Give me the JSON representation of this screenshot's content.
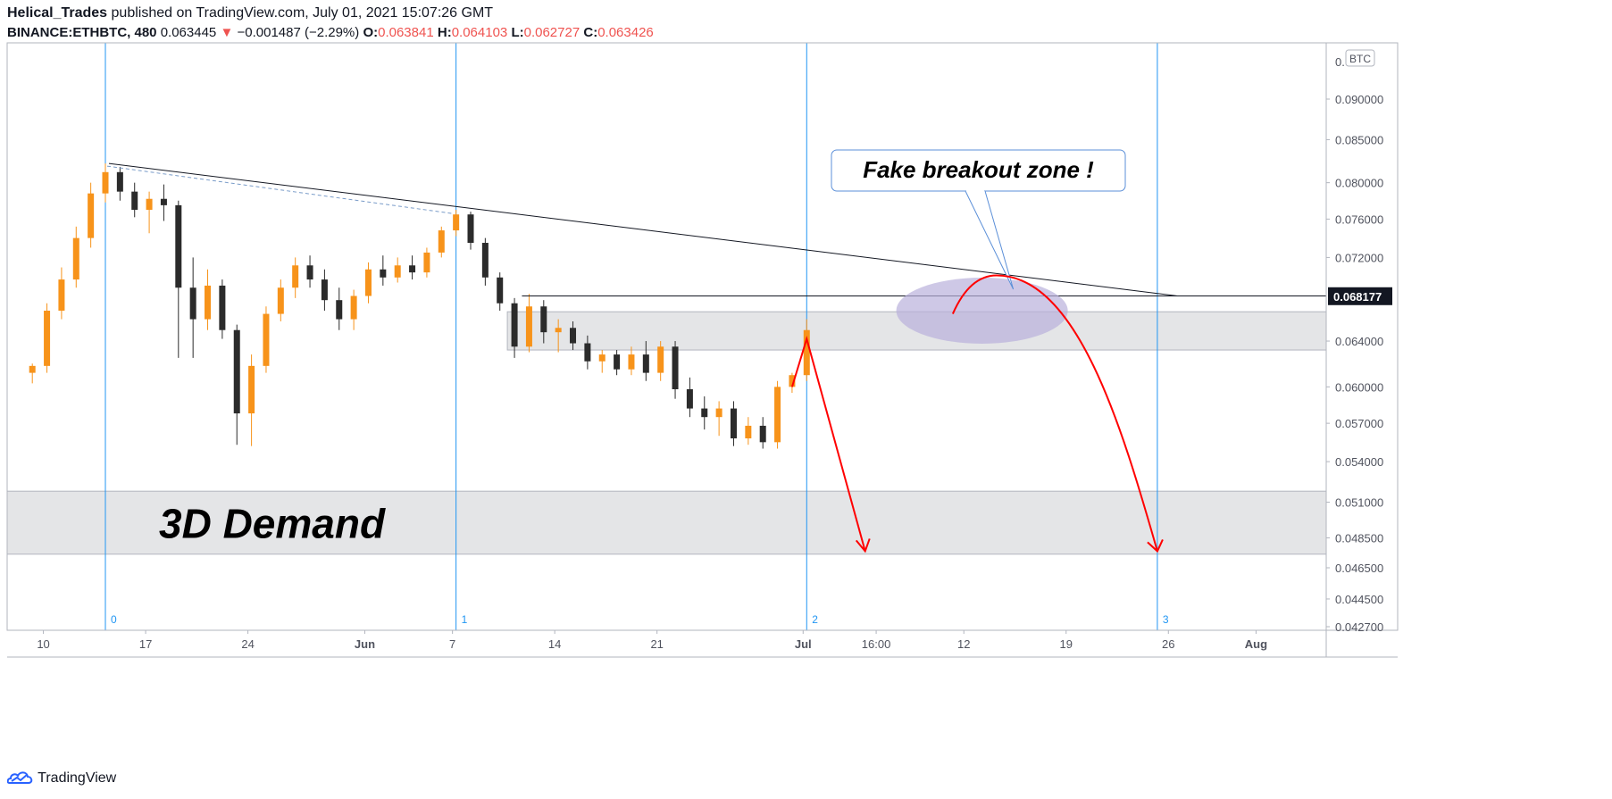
{
  "header": {
    "author": "Helical_Trades",
    "published": "published on TradingView.com, July 01, 2021 15:07:26 GMT",
    "symbol": "BINANCE:ETHBTC, 480",
    "last": "0.063445",
    "change_arrow": "▼",
    "change": "−0.001487 (−2.29%)",
    "open_label": "O:",
    "open": "0.063841",
    "high_label": "H:",
    "high": "0.064103",
    "low_label": "L:",
    "low": "0.062727",
    "close_label": "C:",
    "close": "0.063426"
  },
  "logo": {
    "icon": "tradingview-cloud-icon",
    "text": "TradingView"
  },
  "colors": {
    "up": "#f7931a",
    "down": "#2b2b2b",
    "cycle_line": "#2196f3",
    "projection": "#ff0000",
    "zone": "#e4e5e7",
    "ellipse": "#b9b0dc",
    "price_label_bg": "#131722"
  },
  "chart_data": {
    "type": "candlestick",
    "symbol": "BINANCE:ETHBTC",
    "interval": "480",
    "currency_badge": "BTC",
    "y_axis": {
      "ticks": [
        "0.090000",
        "0.085000",
        "0.080000",
        "0.076000",
        "0.072000",
        "0.068177",
        "0.064000",
        "0.060000",
        "0.057000",
        "0.054000",
        "0.051000",
        "0.048500",
        "0.046500",
        "0.044500",
        "0.042700"
      ],
      "log_scale": true,
      "current_price_label": "0.068177"
    },
    "x_axis": {
      "ticks": [
        "10",
        "17",
        "24",
        "Jun",
        "7",
        "14",
        "21",
        "Jul",
        "16:00",
        "12",
        "19",
        "26",
        "Aug"
      ]
    },
    "cycle_markers": [
      {
        "label": "0",
        "date": "2021-05-14"
      },
      {
        "label": "1",
        "date": "2021-06-07"
      },
      {
        "label": "2",
        "date": "2021-07-01"
      },
      {
        "label": "3",
        "date": "2021-07-25"
      }
    ],
    "candles": [
      {
        "d": "2021-05-09",
        "o": 0.0612,
        "h": 0.062,
        "l": 0.0603,
        "c": 0.0618
      },
      {
        "d": "2021-05-10",
        "o": 0.0618,
        "h": 0.0675,
        "l": 0.0612,
        "c": 0.0668
      },
      {
        "d": "2021-05-11",
        "o": 0.0668,
        "h": 0.071,
        "l": 0.066,
        "c": 0.0698
      },
      {
        "d": "2021-05-12",
        "o": 0.0698,
        "h": 0.0752,
        "l": 0.069,
        "c": 0.074
      },
      {
        "d": "2021-05-13",
        "o": 0.074,
        "h": 0.08,
        "l": 0.073,
        "c": 0.0788
      },
      {
        "d": "2021-05-14",
        "o": 0.0788,
        "h": 0.0822,
        "l": 0.0778,
        "c": 0.0812
      },
      {
        "d": "2021-05-15",
        "o": 0.0812,
        "h": 0.0818,
        "l": 0.078,
        "c": 0.079
      },
      {
        "d": "2021-05-16",
        "o": 0.079,
        "h": 0.08,
        "l": 0.0762,
        "c": 0.077
      },
      {
        "d": "2021-05-17",
        "o": 0.077,
        "h": 0.079,
        "l": 0.0745,
        "c": 0.0782
      },
      {
        "d": "2021-05-18",
        "o": 0.0782,
        "h": 0.0798,
        "l": 0.0758,
        "c": 0.0775
      },
      {
        "d": "2021-05-19",
        "o": 0.0775,
        "h": 0.078,
        "l": 0.0625,
        "c": 0.069
      },
      {
        "d": "2021-05-20",
        "o": 0.069,
        "h": 0.072,
        "l": 0.0625,
        "c": 0.066
      },
      {
        "d": "2021-05-21",
        "o": 0.066,
        "h": 0.0708,
        "l": 0.065,
        "c": 0.0692
      },
      {
        "d": "2021-05-22",
        "o": 0.0692,
        "h": 0.0698,
        "l": 0.0642,
        "c": 0.065
      },
      {
        "d": "2021-05-23",
        "o": 0.065,
        "h": 0.0655,
        "l": 0.0553,
        "c": 0.0578
      },
      {
        "d": "2021-05-24",
        "o": 0.0578,
        "h": 0.0628,
        "l": 0.0552,
        "c": 0.0618
      },
      {
        "d": "2021-05-25",
        "o": 0.0618,
        "h": 0.0672,
        "l": 0.0612,
        "c": 0.0665
      },
      {
        "d": "2021-05-26",
        "o": 0.0665,
        "h": 0.0698,
        "l": 0.0658,
        "c": 0.069
      },
      {
        "d": "2021-05-27",
        "o": 0.069,
        "h": 0.072,
        "l": 0.068,
        "c": 0.0712
      },
      {
        "d": "2021-05-28",
        "o": 0.0712,
        "h": 0.0722,
        "l": 0.069,
        "c": 0.0698
      },
      {
        "d": "2021-05-29",
        "o": 0.0698,
        "h": 0.0708,
        "l": 0.0668,
        "c": 0.0678
      },
      {
        "d": "2021-05-30",
        "o": 0.0678,
        "h": 0.069,
        "l": 0.065,
        "c": 0.066
      },
      {
        "d": "2021-05-31",
        "o": 0.066,
        "h": 0.0688,
        "l": 0.065,
        "c": 0.0682
      },
      {
        "d": "2021-06-01",
        "o": 0.0682,
        "h": 0.0715,
        "l": 0.0675,
        "c": 0.0708
      },
      {
        "d": "2021-06-02",
        "o": 0.0708,
        "h": 0.0722,
        "l": 0.0692,
        "c": 0.07
      },
      {
        "d": "2021-06-03",
        "o": 0.07,
        "h": 0.072,
        "l": 0.0695,
        "c": 0.0712
      },
      {
        "d": "2021-06-04",
        "o": 0.0712,
        "h": 0.0722,
        "l": 0.0698,
        "c": 0.0705
      },
      {
        "d": "2021-06-05",
        "o": 0.0705,
        "h": 0.073,
        "l": 0.07,
        "c": 0.0725
      },
      {
        "d": "2021-06-06",
        "o": 0.0725,
        "h": 0.0752,
        "l": 0.072,
        "c": 0.0748
      },
      {
        "d": "2021-06-07",
        "o": 0.0748,
        "h": 0.077,
        "l": 0.0742,
        "c": 0.0765
      },
      {
        "d": "2021-06-08",
        "o": 0.0765,
        "h": 0.0768,
        "l": 0.0728,
        "c": 0.0735
      },
      {
        "d": "2021-06-09",
        "o": 0.0735,
        "h": 0.074,
        "l": 0.0692,
        "c": 0.07
      },
      {
        "d": "2021-06-10",
        "o": 0.07,
        "h": 0.0705,
        "l": 0.0668,
        "c": 0.0675
      },
      {
        "d": "2021-06-11",
        "o": 0.0675,
        "h": 0.068,
        "l": 0.0625,
        "c": 0.0635
      },
      {
        "d": "2021-06-12",
        "o": 0.0635,
        "h": 0.0684,
        "l": 0.063,
        "c": 0.0672
      },
      {
        "d": "2021-06-13",
        "o": 0.0672,
        "h": 0.0678,
        "l": 0.0638,
        "c": 0.0648
      },
      {
        "d": "2021-06-14",
        "o": 0.0648,
        "h": 0.066,
        "l": 0.063,
        "c": 0.0652
      },
      {
        "d": "2021-06-15",
        "o": 0.0652,
        "h": 0.0658,
        "l": 0.0632,
        "c": 0.0638
      },
      {
        "d": "2021-06-16",
        "o": 0.0638,
        "h": 0.0645,
        "l": 0.0615,
        "c": 0.0622
      },
      {
        "d": "2021-06-17",
        "o": 0.0622,
        "h": 0.0632,
        "l": 0.0612,
        "c": 0.0628
      },
      {
        "d": "2021-06-18",
        "o": 0.0628,
        "h": 0.0632,
        "l": 0.061,
        "c": 0.0615
      },
      {
        "d": "2021-06-19",
        "o": 0.0615,
        "h": 0.0635,
        "l": 0.061,
        "c": 0.0628
      },
      {
        "d": "2021-06-20",
        "o": 0.0628,
        "h": 0.064,
        "l": 0.0605,
        "c": 0.0612
      },
      {
        "d": "2021-06-21",
        "o": 0.0612,
        "h": 0.064,
        "l": 0.0605,
        "c": 0.0635
      },
      {
        "d": "2021-06-22",
        "o": 0.0635,
        "h": 0.064,
        "l": 0.059,
        "c": 0.0598
      },
      {
        "d": "2021-06-23",
        "o": 0.0598,
        "h": 0.0608,
        "l": 0.0575,
        "c": 0.0582
      },
      {
        "d": "2021-06-24",
        "o": 0.0582,
        "h": 0.0592,
        "l": 0.0565,
        "c": 0.0575
      },
      {
        "d": "2021-06-25",
        "o": 0.0575,
        "h": 0.0588,
        "l": 0.056,
        "c": 0.0582
      },
      {
        "d": "2021-06-26",
        "o": 0.0582,
        "h": 0.0588,
        "l": 0.0552,
        "c": 0.0558
      },
      {
        "d": "2021-06-27",
        "o": 0.0558,
        "h": 0.0575,
        "l": 0.0553,
        "c": 0.0568
      },
      {
        "d": "2021-06-28",
        "o": 0.0568,
        "h": 0.0575,
        "l": 0.055,
        "c": 0.0555
      },
      {
        "d": "2021-06-29",
        "o": 0.0555,
        "h": 0.0605,
        "l": 0.055,
        "c": 0.06
      },
      {
        "d": "2021-06-30",
        "o": 0.06,
        "h": 0.0612,
        "l": 0.0595,
        "c": 0.061
      },
      {
        "d": "2021-07-01",
        "o": 0.061,
        "h": 0.066,
        "l": 0.0605,
        "c": 0.065
      }
    ],
    "drawings": {
      "trendline": {
        "from": {
          "date": "2021-05-14",
          "price": 0.0822
        },
        "to": {
          "date": "2021-07-26",
          "price": 0.0682
        }
      },
      "horizontal_line": {
        "price": 0.0682,
        "from_date": "2021-06-12"
      },
      "supply_zone": {
        "top": 0.0667,
        "bottom": 0.0632,
        "from_date": "2021-06-11"
      },
      "demand_zone": {
        "top": 0.0518,
        "bottom": 0.0474,
        "label": "3D Demand"
      },
      "fake_breakout_ellipse": {
        "date": "2021-07-13",
        "price": 0.0668
      },
      "callout": {
        "text": "Fake breakout zone !"
      },
      "projection_1": {
        "points": [
          {
            "date": "2021-06-30",
            "price": 0.06
          },
          {
            "date": "2021-07-01",
            "price": 0.0642
          },
          {
            "date": "2021-07-05",
            "price": 0.0476
          }
        ]
      },
      "projection_2": {
        "points": [
          {
            "date": "2021-07-11",
            "price": 0.0665
          },
          {
            "date": "2021-07-14",
            "price": 0.0702
          },
          {
            "date": "2021-07-25",
            "price": 0.0476
          }
        ]
      }
    }
  }
}
